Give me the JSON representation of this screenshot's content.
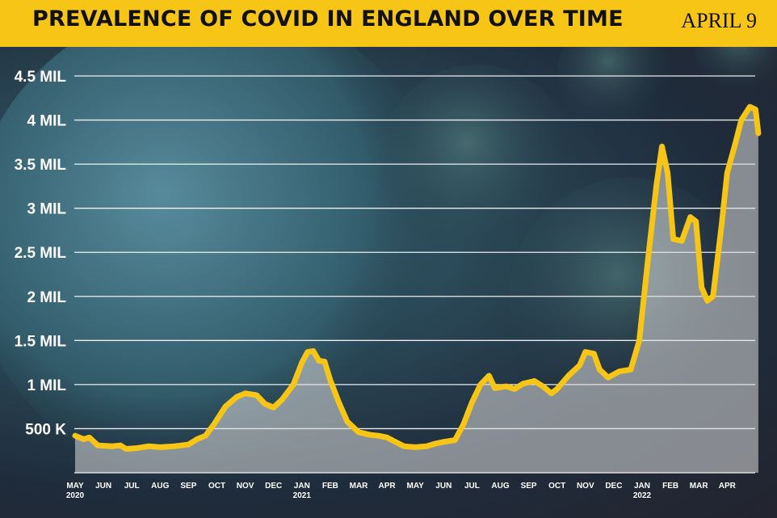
{
  "title": "PREVALENCE OF COVID IN ENGLAND OVER TIME",
  "date_label": "APRIL 9",
  "colors": {
    "header": "#f7c515",
    "line": "#f7c515",
    "area": "#dcdcdc",
    "grid": "#ffffff",
    "text": "#ffffff"
  },
  "chart_data": {
    "type": "area",
    "title": "PREVALENCE OF COVID IN ENGLAND OVER TIME",
    "xlabel": "",
    "ylabel": "",
    "ylim": [
      0,
      4500000
    ],
    "grid": true,
    "y_ticks": [
      {
        "value": 500000,
        "label": "500 K"
      },
      {
        "value": 1000000,
        "label": "1 MIL"
      },
      {
        "value": 1500000,
        "label": "1.5 MIL"
      },
      {
        "value": 2000000,
        "label": "2 MIL"
      },
      {
        "value": 2500000,
        "label": "2.5 MIL"
      },
      {
        "value": 3000000,
        "label": "3 MIL"
      },
      {
        "value": 3500000,
        "label": "3.5 MIL"
      },
      {
        "value": 4000000,
        "label": "4 MIL"
      },
      {
        "value": 4500000,
        "label": "4.5 MIL"
      }
    ],
    "x_ticks": [
      {
        "m": 0,
        "label": "MAY",
        "sub": "2020"
      },
      {
        "m": 1,
        "label": "JUN"
      },
      {
        "m": 2,
        "label": "JUL"
      },
      {
        "m": 3,
        "label": "AUG"
      },
      {
        "m": 4,
        "label": "SEP"
      },
      {
        "m": 5,
        "label": "OCT"
      },
      {
        "m": 6,
        "label": "NOV"
      },
      {
        "m": 7,
        "label": "DEC"
      },
      {
        "m": 8,
        "label": "JAN",
        "sub": "2021"
      },
      {
        "m": 9,
        "label": "FEB"
      },
      {
        "m": 10,
        "label": "MAR"
      },
      {
        "m": 11,
        "label": "APR"
      },
      {
        "m": 12,
        "label": "MAY"
      },
      {
        "m": 13,
        "label": "JUN"
      },
      {
        "m": 14,
        "label": "JUL"
      },
      {
        "m": 15,
        "label": "AUG"
      },
      {
        "m": 16,
        "label": "SEP"
      },
      {
        "m": 17,
        "label": "OCT"
      },
      {
        "m": 18,
        "label": "NOV"
      },
      {
        "m": 19,
        "label": "DEC"
      },
      {
        "m": 20,
        "label": "JAN",
        "sub": "2022"
      },
      {
        "m": 21,
        "label": "FEB"
      },
      {
        "m": 22,
        "label": "MAR"
      },
      {
        "m": 23,
        "label": "APR"
      }
    ],
    "series": [
      {
        "points": [
          [
            0.0,
            420000
          ],
          [
            0.3,
            380000
          ],
          [
            0.5,
            400000
          ],
          [
            0.8,
            310000
          ],
          [
            1.3,
            300000
          ],
          [
            1.6,
            310000
          ],
          [
            1.8,
            270000
          ],
          [
            2.2,
            280000
          ],
          [
            2.6,
            300000
          ],
          [
            3.0,
            290000
          ],
          [
            3.5,
            300000
          ],
          [
            4.0,
            320000
          ],
          [
            4.3,
            380000
          ],
          [
            4.6,
            420000
          ],
          [
            4.9,
            550000
          ],
          [
            5.3,
            750000
          ],
          [
            5.7,
            860000
          ],
          [
            6.0,
            900000
          ],
          [
            6.4,
            880000
          ],
          [
            6.7,
            780000
          ],
          [
            7.0,
            740000
          ],
          [
            7.3,
            830000
          ],
          [
            7.7,
            1000000
          ],
          [
            8.0,
            1250000
          ],
          [
            8.2,
            1370000
          ],
          [
            8.4,
            1380000
          ],
          [
            8.6,
            1270000
          ],
          [
            8.8,
            1260000
          ],
          [
            9.0,
            1050000
          ],
          [
            9.3,
            800000
          ],
          [
            9.6,
            580000
          ],
          [
            10.0,
            460000
          ],
          [
            10.4,
            430000
          ],
          [
            10.7,
            420000
          ],
          [
            11.0,
            400000
          ],
          [
            11.3,
            350000
          ],
          [
            11.6,
            300000
          ],
          [
            12.0,
            290000
          ],
          [
            12.4,
            300000
          ],
          [
            12.7,
            330000
          ],
          [
            13.0,
            350000
          ],
          [
            13.4,
            370000
          ],
          [
            13.7,
            550000
          ],
          [
            14.0,
            800000
          ],
          [
            14.3,
            1000000
          ],
          [
            14.6,
            1100000
          ],
          [
            14.8,
            960000
          ],
          [
            15.2,
            980000
          ],
          [
            15.5,
            950000
          ],
          [
            15.8,
            1010000
          ],
          [
            16.2,
            1040000
          ],
          [
            16.5,
            980000
          ],
          [
            16.8,
            900000
          ],
          [
            17.0,
            950000
          ],
          [
            17.4,
            1100000
          ],
          [
            17.8,
            1220000
          ],
          [
            18.0,
            1370000
          ],
          [
            18.3,
            1350000
          ],
          [
            18.5,
            1170000
          ],
          [
            18.8,
            1080000
          ],
          [
            19.2,
            1150000
          ],
          [
            19.6,
            1170000
          ],
          [
            19.9,
            1500000
          ],
          [
            20.2,
            2400000
          ],
          [
            20.5,
            3250000
          ],
          [
            20.7,
            3700000
          ],
          [
            20.9,
            3400000
          ],
          [
            21.1,
            2650000
          ],
          [
            21.4,
            2630000
          ],
          [
            21.7,
            2900000
          ],
          [
            21.9,
            2850000
          ],
          [
            22.1,
            2100000
          ],
          [
            22.3,
            1950000
          ],
          [
            22.5,
            2000000
          ],
          [
            22.8,
            2800000
          ],
          [
            23.0,
            3400000
          ],
          [
            23.3,
            3750000
          ],
          [
            23.5,
            4000000
          ],
          [
            23.8,
            4150000
          ],
          [
            24.0,
            4120000
          ],
          [
            24.1,
            3850000
          ]
        ]
      }
    ]
  }
}
